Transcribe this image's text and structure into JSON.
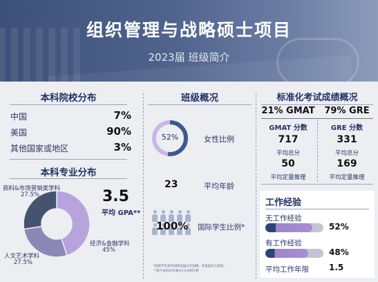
{
  "header": {
    "title": "组织管理与战略硕士项目",
    "subtitle": "2023届 班级简介"
  },
  "undergrad_schools": {
    "title": "本科院校分布",
    "rows": [
      {
        "label": "中国",
        "value": "7%"
      },
      {
        "label": "美国",
        "value": "90%"
      },
      {
        "label": "其他国家或地区",
        "value": "3%"
      }
    ]
  },
  "majors": {
    "title": "本科专业分布",
    "gpa_value": "3.5",
    "gpa_label": "平均 GPA**",
    "segments": [
      {
        "label": "经济&金融学科",
        "percent": "45%",
        "fraction": 0.45,
        "color": "#b7a4dc"
      },
      {
        "label": "人文艺术学科",
        "percent": "27.5%",
        "fraction": 0.275,
        "color": "#8c88b6"
      },
      {
        "label": "商科&市场营销类学科",
        "percent": "27.5%",
        "fraction": 0.275,
        "color": "#46536f"
      }
    ]
  },
  "class_overview": {
    "title": "班级概况",
    "female_ratio": "52%",
    "female_fraction": 0.52,
    "female_label": "女性比例",
    "avg_age": "23",
    "avg_age_label": "平均年龄",
    "intl_ratio": "100%",
    "intl_label": "国际学生比例*",
    "colors": {
      "ring": "#3d5a8e",
      "ring_bg": "#c8b8e6"
    }
  },
  "test_scores": {
    "title": "标准化考试成绩概况",
    "gmat": {
      "header": "21% GMAT",
      "sub": "GMAT 分数",
      "total": "717",
      "total_label": "平均总分",
      "quant": "50",
      "quant_label": "平均定量推理"
    },
    "gre": {
      "header": "79% GRE",
      "sub": "GRE 分数",
      "total": "331",
      "total_label": "平均总分",
      "quant": "169",
      "quant_label": "平均定量推理"
    }
  },
  "work_experience": {
    "title": "工作经验",
    "rows": [
      {
        "label": "无工作经验",
        "value": "52%",
        "fraction": 0.52
      },
      {
        "label": "有工作经验",
        "value": "48%",
        "fraction": 0.48
      }
    ],
    "avg_years_label": "平均工作年限",
    "avg_years": "1.5"
  },
  "footnotes": [
    "*国际学生指中国和美国以外国籍，非美国永久居民。",
    "**基于本科GPA满分4.0分制计算"
  ]
}
